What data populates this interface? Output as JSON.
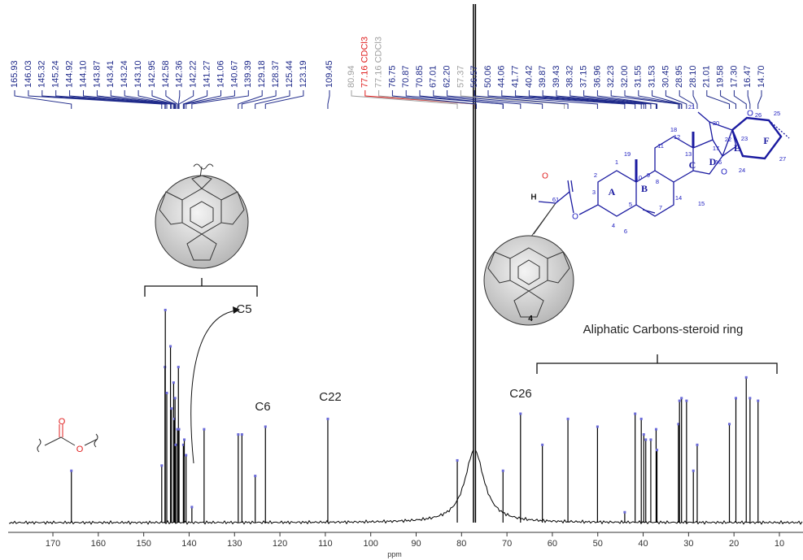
{
  "chart_data": {
    "type": "spectrum",
    "xlabel": "ppm",
    "xlim": [
      179.5,
      4.8
    ],
    "xticks": [
      170,
      160,
      150,
      140,
      130,
      120,
      110,
      100,
      90,
      80,
      70,
      60,
      50,
      40,
      30,
      20,
      10
    ],
    "ylim": [
      0,
      100
    ],
    "color": "#000000",
    "peak_marker_color": "#6a6ad8",
    "x": [
      165.93,
      146.03,
      145.32,
      145.24,
      144.92,
      144.1,
      143.87,
      143.41,
      143.24,
      143.1,
      142.95,
      142.58,
      142.36,
      142.22,
      141.27,
      141.06,
      140.67,
      139.39,
      136.7,
      129.18,
      128.37,
      125.44,
      123.19,
      109.45,
      80.94,
      77.16,
      70.87,
      67.01,
      62.2,
      56.57,
      50.06,
      44.06,
      41.77,
      40.42,
      39.87,
      39.43,
      38.32,
      37.15,
      36.96,
      32.23,
      32.0,
      31.55,
      30.45,
      28.95,
      28.1,
      21.01,
      19.58,
      17.3,
      16.47,
      14.7
    ],
    "values": [
      10,
      11,
      30,
      41,
      25,
      34,
      22,
      27,
      20,
      24,
      15,
      18,
      30,
      18,
      15,
      16,
      13,
      3,
      18,
      17,
      17,
      9,
      18.5,
      20,
      12,
      100,
      10,
      21,
      15,
      20,
      18.5,
      2,
      21,
      20,
      17,
      16,
      16,
      18,
      14,
      19,
      23.5,
      24,
      23.5,
      10,
      15,
      19,
      24,
      28,
      24,
      23.5
    ],
    "peak_labels": [
      "165.93",
      "146.03",
      "145.32",
      "145.24",
      "144.92",
      "144.10",
      "143.87",
      "143.41",
      "143.24",
      "143.10",
      "142.95",
      "142.58",
      "142.36",
      "142.22",
      "141.27",
      "141.06",
      "140.67",
      "139.39",
      "129.18",
      "128.37",
      "125.44",
      "123.19",
      "109.45",
      "80.94",
      "77.16 CDCl3",
      "77.16 CDCl3",
      "76.75",
      "70.87",
      "70.85",
      "67.01",
      "62.20",
      "57.37",
      "56.57",
      "50.06",
      "44.06",
      "41.77",
      "40.42",
      "39.87",
      "39.43",
      "38.32",
      "37.15",
      "36.96",
      "32.23",
      "32.00",
      "31.55",
      "31.53",
      "30.45",
      "28.95",
      "28.10",
      "21.01",
      "19.58",
      "17.30",
      "16.47",
      "14.70"
    ],
    "peak_label_colors": [
      "#1f2a8a",
      "#1f2a8a",
      "#1f2a8a",
      "#1f2a8a",
      "#1f2a8a",
      "#1f2a8a",
      "#1f2a8a",
      "#1f2a8a",
      "#1f2a8a",
      "#1f2a8a",
      "#1f2a8a",
      "#1f2a8a",
      "#1f2a8a",
      "#1f2a8a",
      "#1f2a8a",
      "#1f2a8a",
      "#1f2a8a",
      "#1f2a8a",
      "#1f2a8a",
      "#1f2a8a",
      "#1f2a8a",
      "#1f2a8a",
      "#1f2a8a",
      "#a0a0a0",
      "#e02020",
      "#a0a0a0",
      "#1f2a8a",
      "#1f2a8a",
      "#1f2a8a",
      "#1f2a8a",
      "#1f2a8a",
      "#a0a0a0",
      "#1f2a8a",
      "#1f2a8a",
      "#1f2a8a",
      "#1f2a8a",
      "#1f2a8a",
      "#1f2a8a",
      "#1f2a8a",
      "#1f2a8a",
      "#1f2a8a",
      "#1f2a8a",
      "#1f2a8a",
      "#1f2a8a",
      "#1f2a8a",
      "#1f2a8a",
      "#1f2a8a",
      "#1f2a8a",
      "#1f2a8a",
      "#1f2a8a",
      "#1f2a8a",
      "#1f2a8a",
      "#1f2a8a",
      "#1f2a8a"
    ],
    "annotations": [
      "C5",
      "C6",
      "C22",
      "C26",
      "Aliphatic Carbons-steroid  ring",
      "4"
    ]
  },
  "structure": {
    "labels": [
      "H",
      "61",
      "O",
      "O",
      "3",
      "2",
      "1",
      "4",
      "5",
      "6",
      "7",
      "8",
      "9",
      "10",
      "11",
      "12",
      "13",
      "14",
      "15",
      "16",
      "17",
      "18",
      "19",
      "20",
      "21",
      "22",
      "23",
      "24",
      "25",
      "26",
      "27",
      "O",
      "O"
    ],
    "rings": [
      "A",
      "B",
      "C",
      "D",
      "E",
      "F"
    ],
    "ester_atoms": [
      "O",
      "O"
    ]
  }
}
